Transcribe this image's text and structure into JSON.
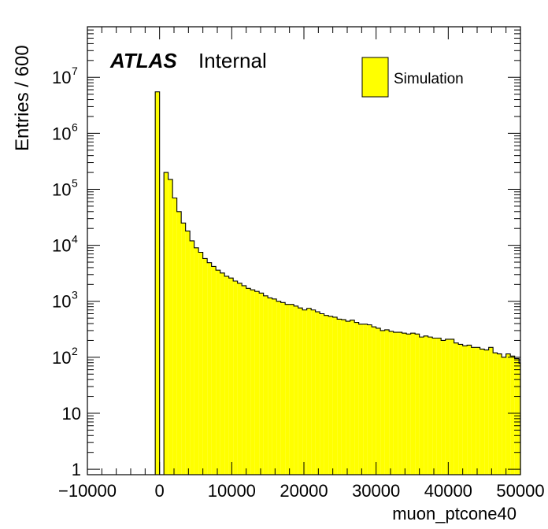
{
  "chart_data": {
    "type": "histogram",
    "xlabel": "muon_ptcone40",
    "ylabel": "Entries / 600",
    "xlim": [
      -10000,
      50000
    ],
    "ylim": [
      0.8,
      80000000.0
    ],
    "log_y": true,
    "grid": false,
    "legend_position": "top-right",
    "bin_width": 600,
    "x_ticks": [
      {
        "value": -10000,
        "label": "−10000"
      },
      {
        "value": 0,
        "label": "0"
      },
      {
        "value": 10000,
        "label": "10000"
      },
      {
        "value": 20000,
        "label": "20000"
      },
      {
        "value": 30000,
        "label": "30000"
      },
      {
        "value": 40000,
        "label": "40000"
      },
      {
        "value": 50000,
        "label": "50000"
      }
    ],
    "y_ticks": [
      {
        "value": 1,
        "base": "1",
        "exp": ""
      },
      {
        "value": 10,
        "base": "10",
        "exp": ""
      },
      {
        "value": 100,
        "base": "10",
        "exp": "2"
      },
      {
        "value": 1000,
        "base": "10",
        "exp": "3"
      },
      {
        "value": 10000,
        "base": "10",
        "exp": "4"
      },
      {
        "value": 100000,
        "base": "10",
        "exp": "5"
      },
      {
        "value": 1000000,
        "base": "10",
        "exp": "6"
      },
      {
        "value": 10000000,
        "base": "10",
        "exp": "7"
      }
    ],
    "series": [
      {
        "name": "Simulation",
        "color": "#ffff00",
        "bin_low_edges": [
          -600,
          0,
          600,
          1200,
          1800,
          2400,
          3000,
          3600,
          4200,
          4800,
          5400,
          6000,
          6600,
          7200,
          7800,
          8400,
          9000,
          9600,
          10200,
          10800,
          11400,
          12000,
          12600,
          13200,
          13800,
          14400,
          15000,
          15600,
          16200,
          16800,
          17400,
          18000,
          18600,
          19200,
          19800,
          20400,
          21000,
          21600,
          22200,
          22800,
          23400,
          24000,
          24600,
          25200,
          25800,
          26400,
          27000,
          27600,
          28200,
          28800,
          29400,
          30000,
          30600,
          31200,
          31800,
          32400,
          33000,
          33600,
          34200,
          34800,
          35400,
          36000,
          36600,
          37200,
          37800,
          38400,
          39000,
          39600,
          40200,
          40800,
          41400,
          42000,
          42600,
          43200,
          43800,
          44400,
          45000,
          45600,
          46200,
          46800,
          47400,
          48000,
          48600,
          49200,
          49800
        ],
        "values": [
          5500000,
          0,
          200000,
          150000,
          70000,
          40000,
          25000,
          18000,
          12000,
          9000,
          7500,
          5800,
          4900,
          4200,
          3600,
          3200,
          2800,
          2600,
          2300,
          2100,
          1900,
          1700,
          1600,
          1500,
          1400,
          1250,
          1150,
          1100,
          1000,
          950,
          880,
          880,
          820,
          760,
          700,
          750,
          700,
          650,
          600,
          560,
          540,
          520,
          480,
          470,
          440,
          460,
          420,
          390,
          390,
          380,
          350,
          330,
          300,
          310,
          290,
          280,
          280,
          270,
          260,
          270,
          260,
          230,
          240,
          230,
          220,
          220,
          200,
          210,
          210,
          180,
          170,
          160,
          165,
          150,
          150,
          140,
          135,
          150,
          120,
          115,
          100,
          115,
          105,
          95,
          78
        ]
      }
    ],
    "annotations": [
      {
        "text": "ATLAS",
        "style": "bold-italic"
      },
      {
        "text": "Internal",
        "style": "normal"
      }
    ]
  }
}
